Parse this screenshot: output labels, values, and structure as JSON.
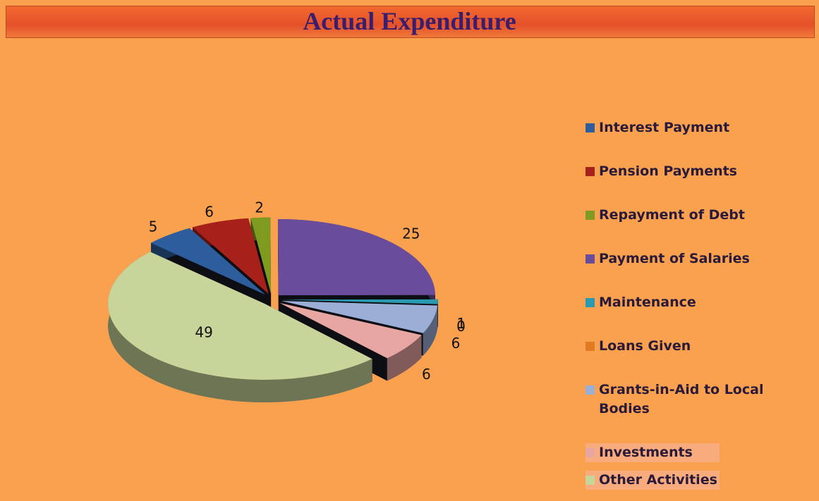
{
  "chart_data": {
    "type": "pie",
    "title": "Actual Expenditure",
    "categories": [
      "Interest Payment",
      "Pension Payments",
      "Repayment of Debt",
      "Payment of Salaries",
      "Maintenance",
      "Loans Given",
      "Grants-in-Aid to Local Bodies",
      "Investments",
      "Other Activities"
    ],
    "values": [
      5,
      6,
      2,
      25,
      1,
      0,
      6,
      6,
      49
    ],
    "colors": [
      "#2E5D9E",
      "#A8201A",
      "#7E9A1F",
      "#6A4C9C",
      "#2A9AB0",
      "#E07B22",
      "#9AAED6",
      "#E8A6A2",
      "#C7D49A"
    ],
    "legend": "right"
  }
}
